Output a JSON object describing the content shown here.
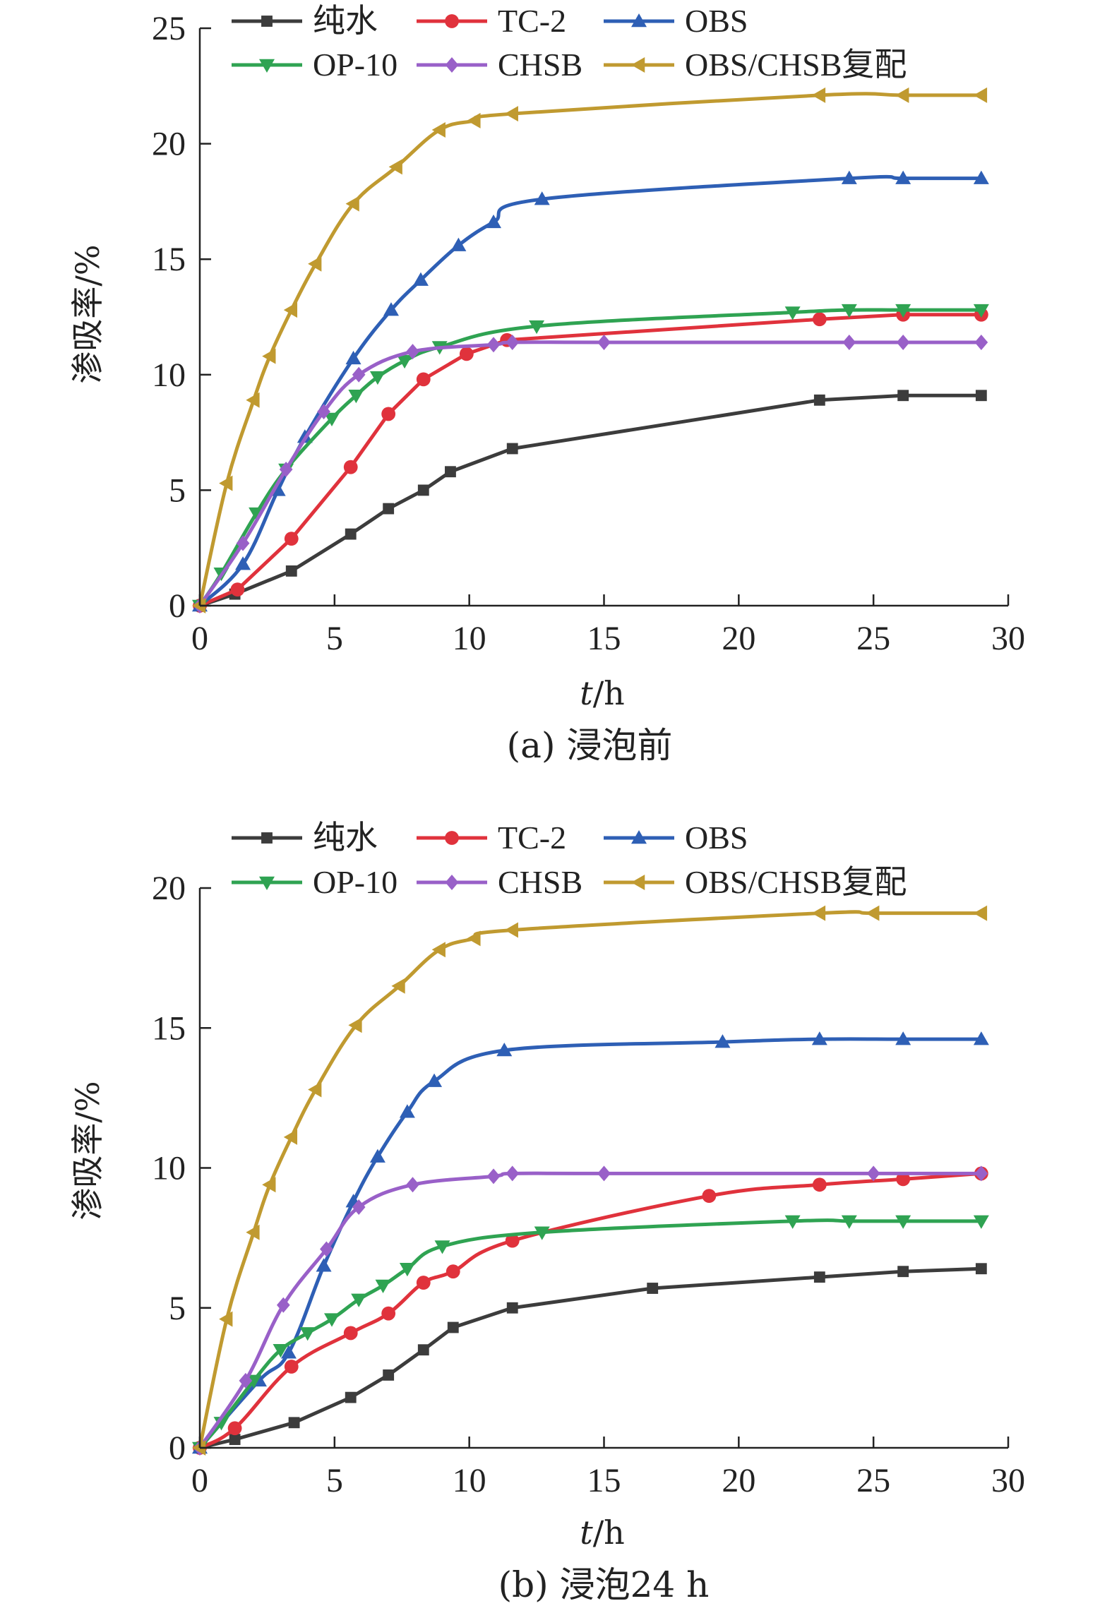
{
  "chart_data": [
    {
      "type": "line",
      "caption": "(a) 浸泡前",
      "xlabel_italic": "t",
      "xlabel_unit": "/h",
      "ylabel": "渗吸率/%",
      "xlim": [
        0,
        30
      ],
      "ylim": [
        0,
        25
      ],
      "xticks": [
        0,
        5,
        10,
        15,
        20,
        25,
        30
      ],
      "yticks": [
        0,
        5,
        10,
        15,
        20,
        25
      ],
      "legend_position": "top",
      "series": [
        {
          "name": "纯水",
          "color": "#3c3c3c",
          "marker": "square",
          "x": [
            0,
            1.3,
            3.4,
            5.6,
            7.0,
            8.3,
            9.3,
            11.6,
            23.0,
            26.1,
            29.0
          ],
          "y": [
            0,
            0.5,
            1.5,
            3.1,
            4.2,
            5.0,
            5.8,
            6.8,
            8.9,
            9.1,
            9.1
          ]
        },
        {
          "name": "TC-2",
          "color": "#e0323c",
          "marker": "circle",
          "x": [
            0,
            1.4,
            3.4,
            5.6,
            7.0,
            8.3,
            9.9,
            11.4,
            23.0,
            26.1,
            29.0
          ],
          "y": [
            0,
            0.7,
            2.9,
            6.0,
            8.3,
            9.8,
            10.9,
            11.5,
            12.4,
            12.6,
            12.6
          ]
        },
        {
          "name": "OBS",
          "color": "#2e5fb5",
          "marker": "triangle-up",
          "x": [
            0,
            1.6,
            2.9,
            3.9,
            5.7,
            7.1,
            8.2,
            9.6,
            10.9,
            12.7,
            24.1,
            26.1,
            29.0
          ],
          "y": [
            0,
            1.8,
            5.0,
            7.3,
            10.7,
            12.8,
            14.1,
            15.6,
            16.6,
            17.6,
            18.5,
            18.5,
            18.5
          ],
          "smooth": true
        },
        {
          "name": "OP-10",
          "color": "#2fa352",
          "marker": "triangle-down",
          "x": [
            0,
            0.8,
            2.1,
            3.2,
            4.9,
            5.8,
            6.6,
            7.6,
            8.9,
            12.5,
            22.0,
            24.1,
            26.1,
            29.0
          ],
          "y": [
            0,
            1.4,
            4.0,
            5.9,
            8.1,
            9.1,
            9.9,
            10.6,
            11.2,
            12.1,
            12.7,
            12.8,
            12.8,
            12.8
          ],
          "smooth": true
        },
        {
          "name": "CHSB",
          "color": "#9960c8",
          "marker": "diamond",
          "x": [
            0,
            1.6,
            3.2,
            4.6,
            5.9,
            7.9,
            10.9,
            11.6,
            15.0,
            24.1,
            26.1,
            29.0
          ],
          "y": [
            0,
            2.7,
            5.9,
            8.4,
            10.0,
            11.0,
            11.3,
            11.4,
            11.4,
            11.4,
            11.4,
            11.4
          ],
          "smooth": true
        },
        {
          "name": "OBS/CHSB复配",
          "color": "#c09a30",
          "marker": "triangle-left",
          "x": [
            0,
            1.0,
            2.0,
            2.6,
            3.4,
            4.3,
            5.7,
            7.3,
            8.9,
            10.2,
            11.6,
            23.0,
            26.1,
            29.0
          ],
          "y": [
            0,
            5.3,
            8.9,
            10.8,
            12.8,
            14.8,
            17.4,
            19.0,
            20.6,
            21.0,
            21.3,
            22.1,
            22.1,
            22.1
          ],
          "smooth": true
        }
      ]
    },
    {
      "type": "line",
      "caption": "(b) 浸泡24 h",
      "xlabel_italic": "t",
      "xlabel_unit": "/h",
      "ylabel": "渗吸率/%",
      "xlim": [
        0,
        30
      ],
      "ylim": [
        0,
        20
      ],
      "xticks": [
        0,
        5,
        10,
        15,
        20,
        25,
        30
      ],
      "yticks": [
        0,
        5,
        10,
        15,
        20
      ],
      "legend_position": "top",
      "series": [
        {
          "name": "纯水",
          "color": "#3c3c3c",
          "marker": "square",
          "x": [
            0,
            1.3,
            3.5,
            5.6,
            7.0,
            8.3,
            9.4,
            11.6,
            16.8,
            23.0,
            26.1,
            29.0
          ],
          "y": [
            0,
            0.3,
            0.9,
            1.8,
            2.6,
            3.5,
            4.3,
            5.0,
            5.7,
            6.1,
            6.3,
            6.4
          ]
        },
        {
          "name": "TC-2",
          "color": "#e0323c",
          "marker": "circle",
          "x": [
            0,
            1.3,
            3.4,
            5.6,
            7.0,
            8.3,
            9.4,
            11.6,
            18.9,
            23.0,
            26.1,
            29.0
          ],
          "y": [
            0,
            0.7,
            2.9,
            4.1,
            4.8,
            5.9,
            6.3,
            7.4,
            9.0,
            9.4,
            9.6,
            9.8
          ],
          "smooth": true
        },
        {
          "name": "OBS",
          "color": "#2e5fb5",
          "marker": "triangle-up",
          "x": [
            0,
            2.2,
            3.3,
            4.6,
            5.7,
            6.6,
            7.7,
            8.7,
            11.3,
            19.4,
            23.0,
            26.1,
            29.0
          ],
          "y": [
            0,
            2.4,
            3.4,
            6.5,
            8.8,
            10.4,
            12.0,
            13.1,
            14.2,
            14.5,
            14.6,
            14.6,
            14.6
          ],
          "smooth": true
        },
        {
          "name": "OP-10",
          "color": "#2fa352",
          "marker": "triangle-down",
          "x": [
            0,
            0.8,
            2.0,
            3.0,
            4.0,
            4.9,
            5.9,
            6.8,
            7.7,
            9.0,
            12.7,
            22.0,
            24.1,
            26.1,
            29.0
          ],
          "y": [
            0,
            0.9,
            2.4,
            3.5,
            4.1,
            4.6,
            5.3,
            5.8,
            6.4,
            7.2,
            7.7,
            8.1,
            8.1,
            8.1,
            8.1
          ],
          "smooth": true
        },
        {
          "name": "CHSB",
          "color": "#9960c8",
          "marker": "diamond",
          "x": [
            0,
            1.7,
            3.1,
            4.7,
            5.9,
            7.9,
            10.9,
            11.6,
            15.0,
            25.0,
            29.0
          ],
          "y": [
            0,
            2.4,
            5.1,
            7.1,
            8.6,
            9.4,
            9.7,
            9.8,
            9.8,
            9.8,
            9.8
          ],
          "smooth": true
        },
        {
          "name": "OBS/CHSB复配",
          "color": "#c09a30",
          "marker": "triangle-left",
          "x": [
            0,
            1.0,
            2.0,
            2.6,
            3.4,
            4.3,
            5.8,
            7.4,
            8.9,
            10.2,
            11.6,
            23.0,
            25.0,
            29.0
          ],
          "y": [
            0,
            4.6,
            7.7,
            9.4,
            11.1,
            12.8,
            15.1,
            16.5,
            17.8,
            18.2,
            18.5,
            19.1,
            19.1,
            19.1
          ],
          "smooth": true
        }
      ]
    }
  ]
}
